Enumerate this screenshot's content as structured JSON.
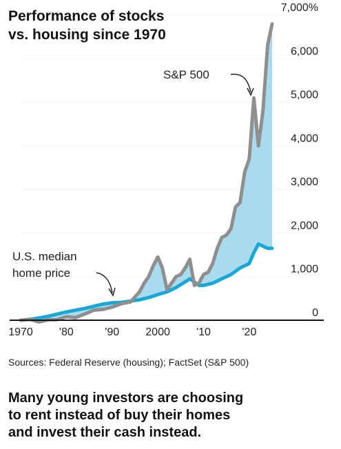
{
  "chart_data": {
    "type": "area",
    "title": "Performance of stocks vs. housing since 1970",
    "title_lines": [
      "Performance of stocks",
      "vs. housing since 1970"
    ],
    "y_unit": "%",
    "ylim": [
      0,
      7000
    ],
    "xlim": [
      1970,
      2025
    ],
    "y_ticks": [
      {
        "value": 7000,
        "label": "7,000%"
      },
      {
        "value": 6000,
        "label": "6,000"
      },
      {
        "value": 5000,
        "label": "5,000"
      },
      {
        "value": 4000,
        "label": "4,000"
      },
      {
        "value": 3000,
        "label": "3,000"
      },
      {
        "value": 2000,
        "label": "2,000"
      },
      {
        "value": 1000,
        "label": "1,000"
      },
      {
        "value": 0,
        "label": "0"
      }
    ],
    "x_ticks": [
      {
        "value": 1970,
        "label": "1970"
      },
      {
        "value": 1980,
        "label": "'80"
      },
      {
        "value": 1990,
        "label": "'90"
      },
      {
        "value": 2000,
        "label": "2000"
      },
      {
        "value": 2010,
        "label": "'10"
      },
      {
        "value": 2020,
        "label": "'20"
      }
    ],
    "fill_color": "#a8dbee",
    "series": [
      {
        "name": "S&P 500",
        "color": "#8f8f8f",
        "x": [
          1970,
          1972,
          1974,
          1976,
          1978,
          1980,
          1982,
          1984,
          1986,
          1988,
          1990,
          1992,
          1994,
          1996,
          1997,
          1998,
          1999,
          2000,
          2001,
          2002,
          2003,
          2004,
          2005,
          2006,
          2007,
          2008,
          2009,
          2010,
          2011,
          2012,
          2013,
          2014,
          2015,
          2016,
          2017,
          2018,
          2019,
          2020,
          2021,
          2022,
          2023,
          2024,
          2025
        ],
        "values": [
          0,
          20,
          -40,
          10,
          15,
          80,
          60,
          140,
          230,
          250,
          300,
          380,
          420,
          650,
          850,
          1000,
          1250,
          1450,
          1200,
          700,
          850,
          1000,
          1050,
          1200,
          1400,
          800,
          850,
          1050,
          1100,
          1300,
          1650,
          1900,
          1950,
          2100,
          2600,
          2700,
          3400,
          3700,
          5100,
          4000,
          4800,
          6300,
          6800
        ]
      },
      {
        "name": "U.S. median home price",
        "color": "#1aa7d6",
        "x": [
          1970,
          1972,
          1974,
          1976,
          1978,
          1980,
          1982,
          1984,
          1986,
          1988,
          1990,
          1992,
          1994,
          1996,
          1998,
          2000,
          2002,
          2004,
          2006,
          2007,
          2008,
          2009,
          2010,
          2012,
          2014,
          2016,
          2018,
          2019,
          2020,
          2021,
          2022,
          2023,
          2024,
          2025
        ],
        "values": [
          0,
          20,
          50,
          90,
          140,
          190,
          230,
          270,
          320,
          370,
          400,
          410,
          440,
          470,
          520,
          590,
          650,
          750,
          880,
          950,
          880,
          800,
          800,
          850,
          950,
          1050,
          1200,
          1250,
          1300,
          1550,
          1750,
          1700,
          1650,
          1650
        ]
      }
    ],
    "annotations": [
      {
        "label": "S&P 500"
      },
      {
        "label_lines": [
          "U.S. median",
          "home price"
        ]
      }
    ]
  },
  "sources": "Sources: Federal Reserve (housing); FactSet (S&P 500)",
  "caption_lines": [
    "Many young investors are choosing",
    "to rent instead of buy their homes",
    "and invest their cash instead."
  ]
}
